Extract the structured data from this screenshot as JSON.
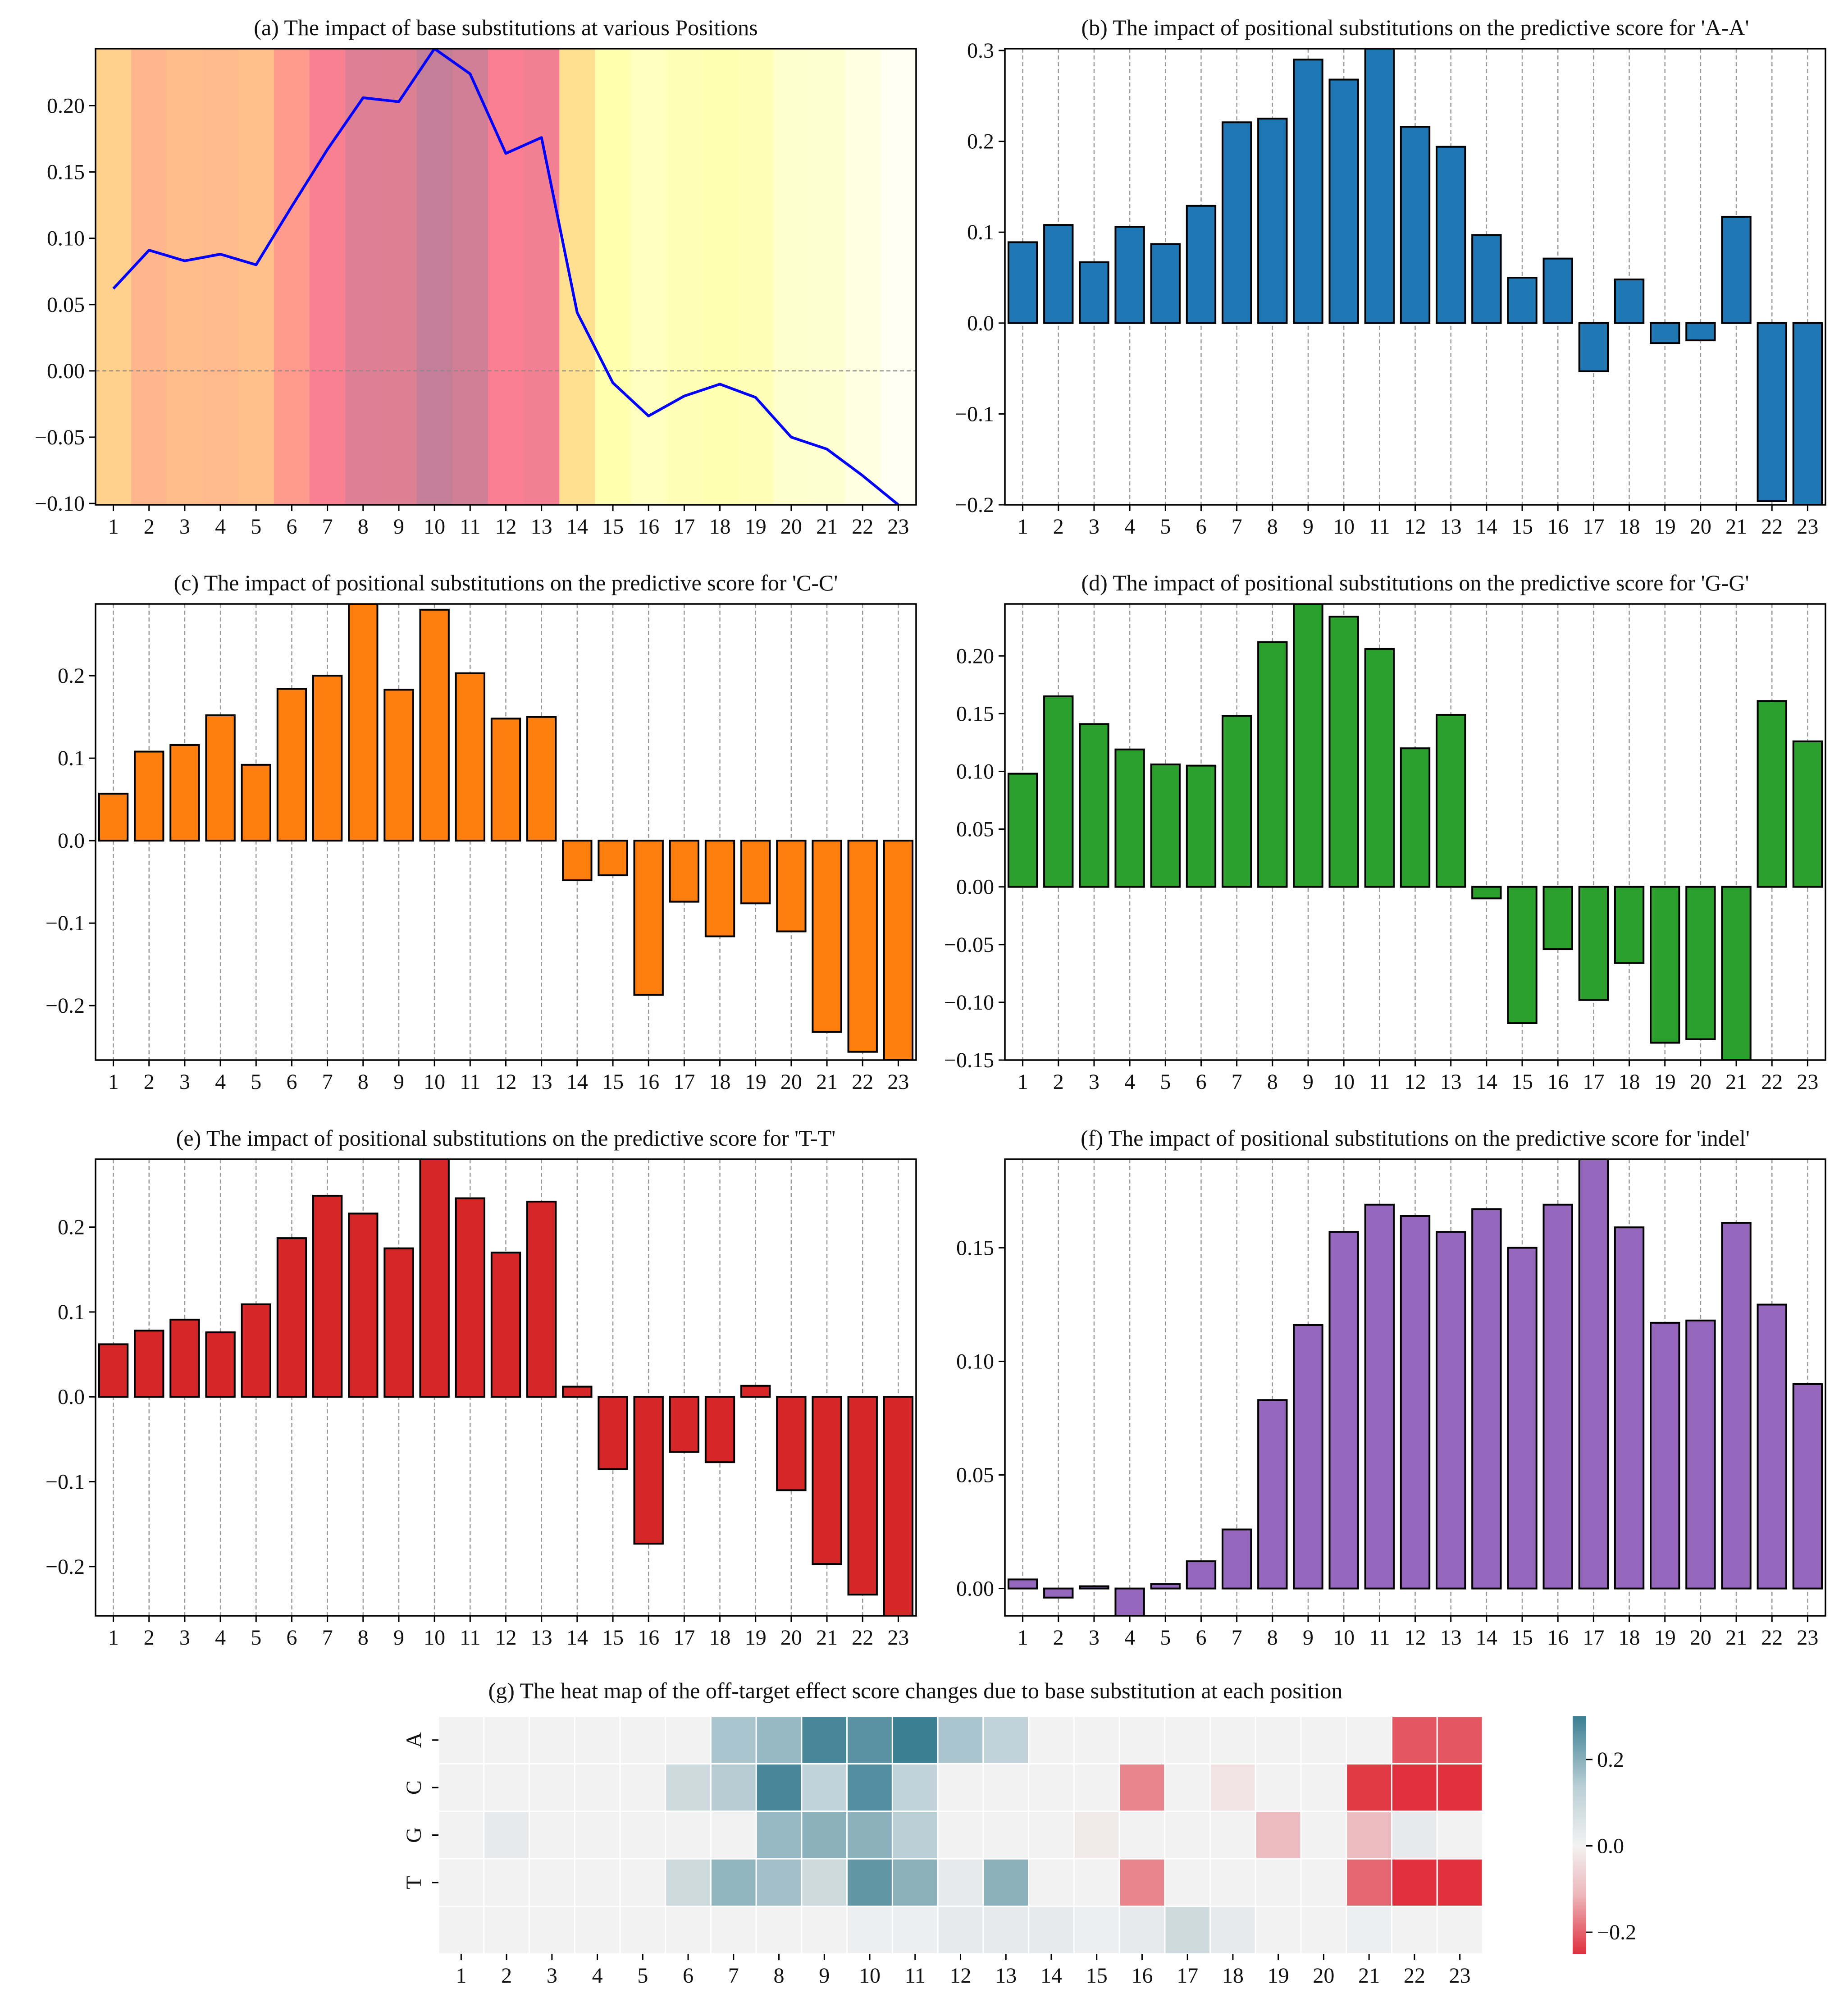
{
  "colors": {
    "bar_aa": "#1f77b4",
    "bar_cc": "#ff7f0e",
    "bar_gg": "#2ca02c",
    "bar_tt": "#d62728",
    "bar_indel": "#9467bd",
    "line": "#0000ff",
    "heat_pos": "#3b7f93",
    "heat_mid": "#f2f2f2",
    "heat_neg": "#e0303e"
  },
  "chart_data": [
    {
      "id": "a",
      "type": "line",
      "title": "(a) The impact of base substitutions at various Positions",
      "xlabel": "",
      "ylabel": "",
      "x": [
        1,
        2,
        3,
        4,
        5,
        6,
        7,
        8,
        9,
        10,
        11,
        12,
        13,
        14,
        15,
        16,
        17,
        18,
        19,
        20,
        21,
        22,
        23
      ],
      "values": [
        0.062,
        0.091,
        0.083,
        0.088,
        0.08,
        0.124,
        0.167,
        0.206,
        0.203,
        0.243,
        0.224,
        0.164,
        0.176,
        0.044,
        -0.009,
        -0.034,
        -0.019,
        -0.01,
        -0.02,
        -0.05,
        -0.059,
        -0.079,
        -0.101
      ],
      "ylim": [
        -0.101,
        0.243
      ],
      "yticks": [
        "0.20",
        "0.15",
        "0.10",
        "0.05",
        "0.00",
        "−0.05",
        "−0.10"
      ],
      "ytick_values": [
        0.2,
        0.15,
        0.1,
        0.05,
        0.0,
        -0.05,
        -0.1
      ],
      "background": "band shading colored by value (yellow low → red/violet high)",
      "zero_line": true
    },
    {
      "id": "b",
      "type": "bar",
      "title": "(b) The impact of positional substitutions on the predictive score for 'A-A'",
      "categories": [
        "1",
        "2",
        "3",
        "4",
        "5",
        "6",
        "7",
        "8",
        "9",
        "10",
        "11",
        "12",
        "13",
        "14",
        "15",
        "16",
        "17",
        "18",
        "19",
        "20",
        "21",
        "22",
        "23"
      ],
      "values": [
        0.089,
        0.108,
        0.067,
        0.106,
        0.087,
        0.129,
        0.221,
        0.225,
        0.29,
        0.268,
        0.302,
        0.216,
        0.194,
        0.097,
        0.05,
        0.071,
        -0.053,
        0.048,
        -0.022,
        -0.019,
        0.117,
        -0.196,
        -0.2
      ],
      "ylim": [
        -0.2,
        0.302
      ],
      "yticks": [
        "0.3",
        "0.2",
        "0.1",
        "0.0",
        "−0.1",
        "−0.2"
      ],
      "ytick_values": [
        0.3,
        0.2,
        0.1,
        0.0,
        -0.1,
        -0.2
      ]
    },
    {
      "id": "c",
      "type": "bar",
      "title": "(c) The impact of positional substitutions on the predictive score for 'C-C'",
      "categories": [
        "1",
        "2",
        "3",
        "4",
        "5",
        "6",
        "7",
        "8",
        "9",
        "10",
        "11",
        "12",
        "13",
        "14",
        "15",
        "16",
        "17",
        "18",
        "19",
        "20",
        "21",
        "22",
        "23"
      ],
      "values": [
        0.057,
        0.108,
        0.116,
        0.152,
        0.092,
        0.184,
        0.2,
        0.287,
        0.183,
        0.28,
        0.203,
        0.148,
        0.15,
        -0.048,
        -0.042,
        -0.187,
        -0.074,
        -0.116,
        -0.076,
        -0.11,
        -0.232,
        -0.256,
        -0.266
      ],
      "ylim": [
        -0.266,
        0.287
      ],
      "yticks": [
        "0.2",
        "0.1",
        "0.0",
        "−0.1",
        "−0.2"
      ],
      "ytick_values": [
        0.2,
        0.1,
        0.0,
        -0.1,
        -0.2
      ]
    },
    {
      "id": "d",
      "type": "bar",
      "title": "(d) The impact of positional substitutions on the predictive score for 'G-G'",
      "categories": [
        "1",
        "2",
        "3",
        "4",
        "5",
        "6",
        "7",
        "8",
        "9",
        "10",
        "11",
        "12",
        "13",
        "14",
        "15",
        "16",
        "17",
        "18",
        "19",
        "20",
        "21",
        "22",
        "23"
      ],
      "values": [
        0.098,
        0.165,
        0.141,
        0.119,
        0.106,
        0.105,
        0.148,
        0.212,
        0.245,
        0.234,
        0.206,
        0.12,
        0.149,
        -0.01,
        -0.118,
        -0.054,
        -0.098,
        -0.066,
        -0.135,
        -0.132,
        -0.15,
        0.161,
        0.126
      ],
      "ylim": [
        -0.15,
        0.245
      ],
      "yticks": [
        "0.20",
        "0.15",
        "0.10",
        "0.05",
        "0.00",
        "−0.05",
        "−0.10",
        "−0.15"
      ],
      "ytick_values": [
        0.2,
        0.15,
        0.1,
        0.05,
        0.0,
        -0.05,
        -0.1,
        -0.15
      ]
    },
    {
      "id": "e",
      "type": "bar",
      "title": "(e) The impact of positional substitutions on the predictive score for 'T-T'",
      "categories": [
        "1",
        "2",
        "3",
        "4",
        "5",
        "6",
        "7",
        "8",
        "9",
        "10",
        "11",
        "12",
        "13",
        "14",
        "15",
        "16",
        "17",
        "18",
        "19",
        "20",
        "21",
        "22",
        "23"
      ],
      "values": [
        0.062,
        0.078,
        0.091,
        0.076,
        0.109,
        0.187,
        0.237,
        0.216,
        0.175,
        0.28,
        0.234,
        0.17,
        0.23,
        0.012,
        -0.085,
        -0.173,
        -0.065,
        -0.077,
        0.013,
        -0.11,
        -0.197,
        -0.233,
        -0.258
      ],
      "ylim": [
        -0.258,
        0.28
      ],
      "yticks": [
        "0.2",
        "0.1",
        "0.0",
        "−0.1",
        "−0.2"
      ],
      "ytick_values": [
        0.2,
        0.1,
        0.0,
        -0.1,
        -0.2
      ]
    },
    {
      "id": "f",
      "type": "bar",
      "title": "(f) The impact of positional substitutions on the predictive score for 'indel'",
      "categories": [
        "1",
        "2",
        "3",
        "4",
        "5",
        "6",
        "7",
        "8",
        "9",
        "10",
        "11",
        "12",
        "13",
        "14",
        "15",
        "16",
        "17",
        "18",
        "19",
        "20",
        "21",
        "22",
        "23"
      ],
      "values": [
        0.004,
        -0.004,
        0.001,
        -0.012,
        0.002,
        0.012,
        0.026,
        0.083,
        0.116,
        0.157,
        0.169,
        0.164,
        0.157,
        0.167,
        0.15,
        0.169,
        0.189,
        0.159,
        0.117,
        0.118,
        0.161,
        0.125,
        0.09
      ],
      "ylim": [
        -0.012,
        0.189
      ],
      "yticks": [
        "0.15",
        "0.10",
        "0.05",
        "0.00"
      ],
      "ytick_values": [
        0.15,
        0.1,
        0.05,
        0.0
      ]
    },
    {
      "id": "g",
      "type": "heatmap",
      "title": "(g) The heat map of the off-target effect score changes due to base substitution at each position",
      "x": [
        "1",
        "2",
        "3",
        "4",
        "5",
        "6",
        "7",
        "8",
        "9",
        "10",
        "11",
        "12",
        "13",
        "14",
        "15",
        "16",
        "17",
        "18",
        "19",
        "20",
        "21",
        "22",
        "23"
      ],
      "y": [
        "A",
        "C",
        "G",
        "T",
        ""
      ],
      "values": [
        [
          0.0,
          0.0,
          0.0,
          0.0,
          0.0,
          0.0,
          0.12,
          0.15,
          0.28,
          0.25,
          0.3,
          0.12,
          0.08,
          0.0,
          0.0,
          0.0,
          0.0,
          0.0,
          0.0,
          0.0,
          0.0,
          -0.2,
          -0.2
        ],
        [
          0.0,
          0.0,
          0.0,
          0.0,
          0.0,
          0.06,
          0.1,
          0.28,
          0.08,
          0.26,
          0.08,
          0.0,
          0.0,
          0.0,
          0.0,
          -0.14,
          0.0,
          -0.02,
          0.0,
          0.0,
          -0.24,
          -0.28,
          -0.28
        ],
        [
          0.0,
          0.02,
          0.0,
          0.0,
          0.0,
          0.0,
          0.0,
          0.15,
          0.17,
          0.17,
          0.09,
          0.0,
          0.0,
          0.0,
          -0.01,
          0.0,
          0.0,
          0.0,
          -0.07,
          0.0,
          -0.07,
          0.02,
          0.0
        ],
        [
          0.0,
          0.0,
          0.0,
          0.0,
          0.0,
          0.06,
          0.16,
          0.13,
          0.06,
          0.24,
          0.17,
          0.02,
          0.17,
          0.0,
          0.0,
          -0.14,
          0.0,
          0.0,
          0.0,
          0.0,
          -0.18,
          -0.26,
          -0.28
        ],
        [
          0.0,
          0.0,
          0.0,
          0.0,
          0.0,
          0.0,
          0.0,
          0.0,
          0.0,
          0.01,
          0.01,
          0.02,
          0.02,
          0.02,
          0.01,
          0.02,
          0.06,
          0.02,
          0.0,
          0.0,
          0.01,
          0.0,
          0.0
        ]
      ],
      "colorbar": {
        "min": -0.25,
        "max": 0.3,
        "ticks": [
          "0.2",
          "0.0",
          "−0.2"
        ],
        "tick_values": [
          0.2,
          0.0,
          -0.2
        ]
      }
    }
  ]
}
